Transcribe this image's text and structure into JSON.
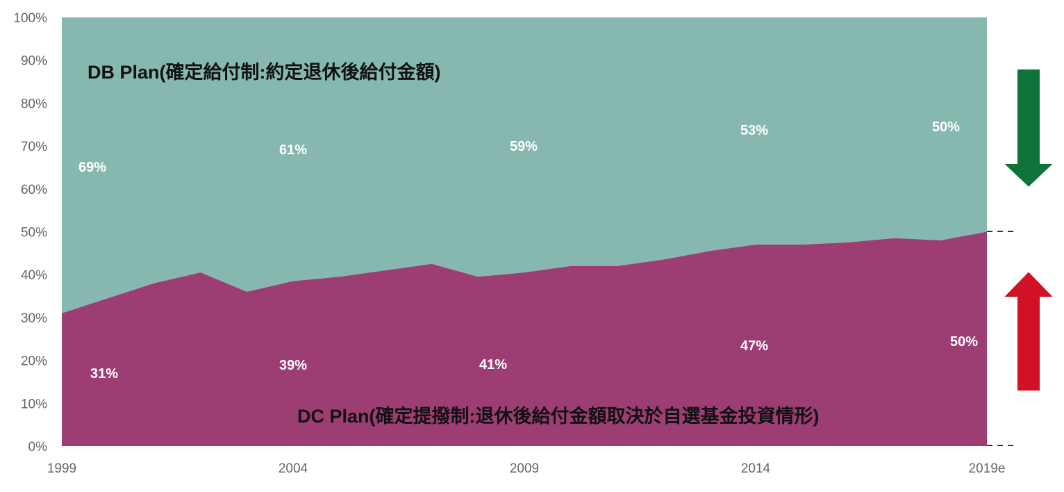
{
  "chart_data": {
    "type": "area",
    "stacked": true,
    "normalized": true,
    "x": [
      1999,
      2000,
      2001,
      2002,
      2003,
      2004,
      2005,
      2006,
      2007,
      2008,
      2009,
      2010,
      2011,
      2012,
      2013,
      2014,
      2015,
      2016,
      2017,
      2018,
      2019
    ],
    "x_tick_labels": [
      "1999",
      "2004",
      "2009",
      "2014",
      "2019e"
    ],
    "x_tick_values": [
      1999,
      2004,
      2009,
      2014,
      2019
    ],
    "y_tick_labels": [
      "0%",
      "10%",
      "20%",
      "30%",
      "40%",
      "50%",
      "60%",
      "70%",
      "80%",
      "90%",
      "100%"
    ],
    "ylim": [
      0,
      100
    ],
    "series": [
      {
        "name": "DC Plan(確定提撥制:退休後給付金額取決於自選基金投資情形)",
        "color": "#9c3d74",
        "values": [
          31,
          34.5,
          38,
          40.5,
          36,
          38.5,
          39.5,
          41,
          42.5,
          39.5,
          40.5,
          42,
          42,
          43.5,
          45.5,
          47,
          47,
          47.5,
          48.5,
          48,
          50
        ]
      },
      {
        "name": "DB Plan(確定給付制:約定退休後給付金額)",
        "color": "#86b8b0",
        "values": [
          69,
          65.5,
          62,
          59.5,
          64,
          61.5,
          60.5,
          59,
          57.5,
          60.5,
          59.5,
          58,
          58,
          56.5,
          54.5,
          53,
          53,
          52.5,
          51.5,
          52,
          50
        ]
      }
    ],
    "db_labels": [
      "69%",
      "61%",
      "59%",
      "53%",
      "50%"
    ],
    "dc_labels": [
      "31%",
      "39%",
      "41%",
      "47%",
      "50%"
    ],
    "db_label_title": "DB Plan(確定給付制:約定退休後給付金額)",
    "dc_label_title": "DC Plan(確定提撥制:退休後給付金額取決於自選基金投資情形)",
    "arrow_down_color": "#10733a",
    "arrow_up_color": "#d11226",
    "grid": false
  }
}
